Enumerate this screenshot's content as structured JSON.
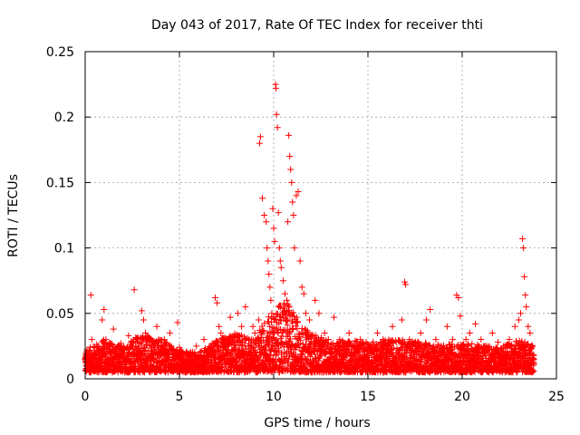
{
  "chart_data": {
    "type": "scatter",
    "title": "Day 043 of 2017, Rate Of TEC Index for receiver thti",
    "xlabel": "GPS time / hours",
    "ylabel": "ROTI / TECUs",
    "xlim": [
      0,
      25
    ],
    "ylim": [
      0,
      0.25
    ],
    "xticks": [
      0,
      5,
      10,
      15,
      20,
      25
    ],
    "yticks": [
      0,
      0.05,
      0.1,
      0.15,
      0.2,
      0.25
    ],
    "xtick_labels": [
      "0",
      "5",
      "10",
      "15",
      "20",
      "25"
    ],
    "ytick_labels": [
      "0",
      "0.05",
      "0.1",
      "0.15",
      "0.2",
      "0.25"
    ],
    "grid": true,
    "marker": "+",
    "series": [
      {
        "name": "ROTI",
        "color": "#ff0000",
        "points": [
          [
            0.05,
            0.012
          ],
          [
            0.2,
            0.022
          ],
          [
            0.3,
            0.064
          ],
          [
            0.35,
            0.03
          ],
          [
            0.5,
            0.018
          ],
          [
            0.7,
            0.025
          ],
          [
            0.9,
            0.045
          ],
          [
            1.0,
            0.053
          ],
          [
            1.1,
            0.03
          ],
          [
            1.3,
            0.02
          ],
          [
            1.5,
            0.038
          ],
          [
            1.7,
            0.015
          ],
          [
            1.9,
            0.027
          ],
          [
            2.1,
            0.022
          ],
          [
            2.3,
            0.033
          ],
          [
            2.6,
            0.068
          ],
          [
            2.8,
            0.025
          ],
          [
            3.0,
            0.052
          ],
          [
            3.1,
            0.045
          ],
          [
            3.2,
            0.035
          ],
          [
            3.4,
            0.028
          ],
          [
            3.6,
            0.018
          ],
          [
            3.8,
            0.04
          ],
          [
            4.0,
            0.02
          ],
          [
            4.2,
            0.03
          ],
          [
            4.5,
            0.035
          ],
          [
            4.7,
            0.015
          ],
          [
            4.9,
            0.043
          ],
          [
            5.0,
            0.024
          ],
          [
            5.3,
            0.013
          ],
          [
            5.6,
            0.02
          ],
          [
            5.9,
            0.025
          ],
          [
            6.1,
            0.015
          ],
          [
            6.3,
            0.03
          ],
          [
            6.5,
            0.022
          ],
          [
            6.9,
            0.062
          ],
          [
            7.0,
            0.058
          ],
          [
            7.1,
            0.04
          ],
          [
            7.2,
            0.035
          ],
          [
            7.5,
            0.03
          ],
          [
            7.7,
            0.047
          ],
          [
            7.9,
            0.025
          ],
          [
            8.1,
            0.05
          ],
          [
            8.3,
            0.04
          ],
          [
            8.5,
            0.055
          ],
          [
            8.7,
            0.03
          ],
          [
            8.9,
            0.04
          ],
          [
            9.0,
            0.035
          ],
          [
            9.2,
            0.045
          ],
          [
            9.25,
            0.18
          ],
          [
            9.3,
            0.185
          ],
          [
            9.4,
            0.138
          ],
          [
            9.5,
            0.125
          ],
          [
            9.6,
            0.12
          ],
          [
            9.65,
            0.1
          ],
          [
            9.7,
            0.09
          ],
          [
            9.75,
            0.08
          ],
          [
            9.8,
            0.07
          ],
          [
            9.85,
            0.06
          ],
          [
            9.9,
            0.05
          ],
          [
            9.95,
            0.13
          ],
          [
            10.0,
            0.115
          ],
          [
            10.05,
            0.105
          ],
          [
            10.1,
            0.225
          ],
          [
            10.12,
            0.222
          ],
          [
            10.15,
            0.202
          ],
          [
            10.2,
            0.192
          ],
          [
            10.25,
            0.127
          ],
          [
            10.3,
            0.1
          ],
          [
            10.35,
            0.09
          ],
          [
            10.4,
            0.085
          ],
          [
            10.5,
            0.075
          ],
          [
            10.6,
            0.065
          ],
          [
            10.7,
            0.06
          ],
          [
            10.75,
            0.12
          ],
          [
            10.8,
            0.186
          ],
          [
            10.85,
            0.17
          ],
          [
            10.9,
            0.16
          ],
          [
            10.95,
            0.15
          ],
          [
            11.0,
            0.135
          ],
          [
            11.05,
            0.125
          ],
          [
            11.1,
            0.1
          ],
          [
            11.2,
            0.14
          ],
          [
            11.3,
            0.143
          ],
          [
            11.4,
            0.09
          ],
          [
            11.5,
            0.07
          ],
          [
            11.6,
            0.065
          ],
          [
            11.7,
            0.05
          ],
          [
            11.9,
            0.045
          ],
          [
            12.2,
            0.06
          ],
          [
            12.4,
            0.05
          ],
          [
            12.7,
            0.035
          ],
          [
            12.9,
            0.03
          ],
          [
            13.2,
            0.047
          ],
          [
            13.5,
            0.03
          ],
          [
            13.8,
            0.025
          ],
          [
            14.0,
            0.035
          ],
          [
            14.3,
            0.02
          ],
          [
            14.6,
            0.03
          ],
          [
            14.9,
            0.028
          ],
          [
            15.2,
            0.02
          ],
          [
            15.5,
            0.035
          ],
          [
            15.8,
            0.03
          ],
          [
            16.0,
            0.025
          ],
          [
            16.3,
            0.04
          ],
          [
            16.5,
            0.028
          ],
          [
            16.8,
            0.045
          ],
          [
            16.95,
            0.074
          ],
          [
            17.0,
            0.072
          ],
          [
            17.2,
            0.03
          ],
          [
            17.5,
            0.025
          ],
          [
            17.8,
            0.035
          ],
          [
            18.1,
            0.045
          ],
          [
            18.3,
            0.053
          ],
          [
            18.6,
            0.03
          ],
          [
            18.9,
            0.025
          ],
          [
            19.2,
            0.04
          ],
          [
            19.5,
            0.03
          ],
          [
            19.7,
            0.064
          ],
          [
            19.8,
            0.062
          ],
          [
            19.9,
            0.048
          ],
          [
            20.2,
            0.03
          ],
          [
            20.4,
            0.035
          ],
          [
            20.7,
            0.042
          ],
          [
            21.0,
            0.03
          ],
          [
            21.3,
            0.025
          ],
          [
            21.6,
            0.035
          ],
          [
            21.9,
            0.028
          ],
          [
            22.2,
            0.025
          ],
          [
            22.5,
            0.03
          ],
          [
            22.8,
            0.04
          ],
          [
            23.0,
            0.045
          ],
          [
            23.1,
            0.05
          ],
          [
            23.2,
            0.107
          ],
          [
            23.25,
            0.1
          ],
          [
            23.3,
            0.078
          ],
          [
            23.35,
            0.064
          ],
          [
            23.4,
            0.055
          ],
          [
            23.5,
            0.04
          ],
          [
            23.6,
            0.035
          ],
          [
            23.7,
            0.025
          ],
          [
            23.8,
            0.015
          ]
        ]
      }
    ],
    "dense_band": {
      "description": "Dense cloud of ROTI samples spanning the full day",
      "x_range": [
        0,
        23.8
      ],
      "typical_ymin": 0.005,
      "typical_ymax": 0.035,
      "sample_step_hours": 0.03,
      "points_per_step": 5,
      "envelope": [
        [
          0,
          0.022
        ],
        [
          1,
          0.03
        ],
        [
          2,
          0.025
        ],
        [
          3,
          0.035
        ],
        [
          4,
          0.03
        ],
        [
          5,
          0.022
        ],
        [
          6,
          0.02
        ],
        [
          7,
          0.03
        ],
        [
          8,
          0.035
        ],
        [
          9,
          0.03
        ],
        [
          9.5,
          0.045
        ],
        [
          10,
          0.05
        ],
        [
          10.5,
          0.06
        ],
        [
          11,
          0.055
        ],
        [
          11.5,
          0.04
        ],
        [
          12,
          0.035
        ],
        [
          13,
          0.028
        ],
        [
          14,
          0.03
        ],
        [
          15,
          0.028
        ],
        [
          16,
          0.03
        ],
        [
          17,
          0.03
        ],
        [
          18,
          0.028
        ],
        [
          19,
          0.026
        ],
        [
          20,
          0.028
        ],
        [
          21,
          0.026
        ],
        [
          22,
          0.024
        ],
        [
          23,
          0.03
        ],
        [
          23.8,
          0.025
        ]
      ]
    }
  }
}
